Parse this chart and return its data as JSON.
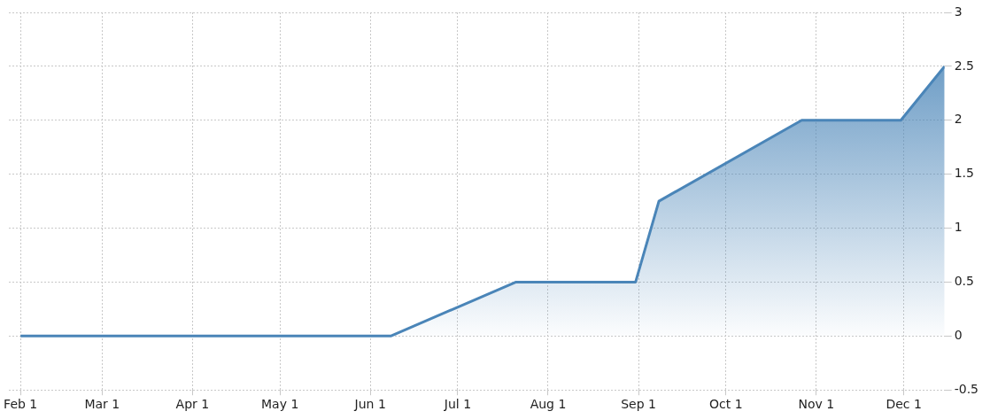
{
  "chart_data": {
    "type": "area",
    "x": [
      "--02-01",
      "--06-08",
      "--07-21",
      "--08-31",
      "--09-08",
      "--10-27",
      "--11-30",
      "--12-15"
    ],
    "series": [
      {
        "color": "#4a85b8",
        "values": [
          0,
          0,
          0.5,
          0.5,
          1.25,
          2,
          2,
          2.5
        ]
      }
    ],
    "xlim": [
      "--01-28",
      "--12-15"
    ],
    "xticks": [
      {
        "value": "--02-01",
        "label": "Feb 1"
      },
      {
        "value": "--03-01",
        "label": "Mar 1"
      },
      {
        "value": "--04-01",
        "label": "Apr 1"
      },
      {
        "value": "--05-01",
        "label": "May 1"
      },
      {
        "value": "--06-01",
        "label": "Jun 1"
      },
      {
        "value": "--07-01",
        "label": "Jul 1"
      },
      {
        "value": "--08-01",
        "label": "Aug 1"
      },
      {
        "value": "--09-01",
        "label": "Sep 1"
      },
      {
        "value": "--10-01",
        "label": "Oct 1"
      },
      {
        "value": "--11-01",
        "label": "Nov 1"
      },
      {
        "value": "--12-01",
        "label": "Dec 1"
      }
    ],
    "ylim": [
      -0.5,
      3
    ],
    "yticks": [
      -0.5,
      0,
      0.5,
      1,
      1.5,
      2,
      2.5,
      3
    ],
    "grid": true,
    "marker": "none"
  }
}
